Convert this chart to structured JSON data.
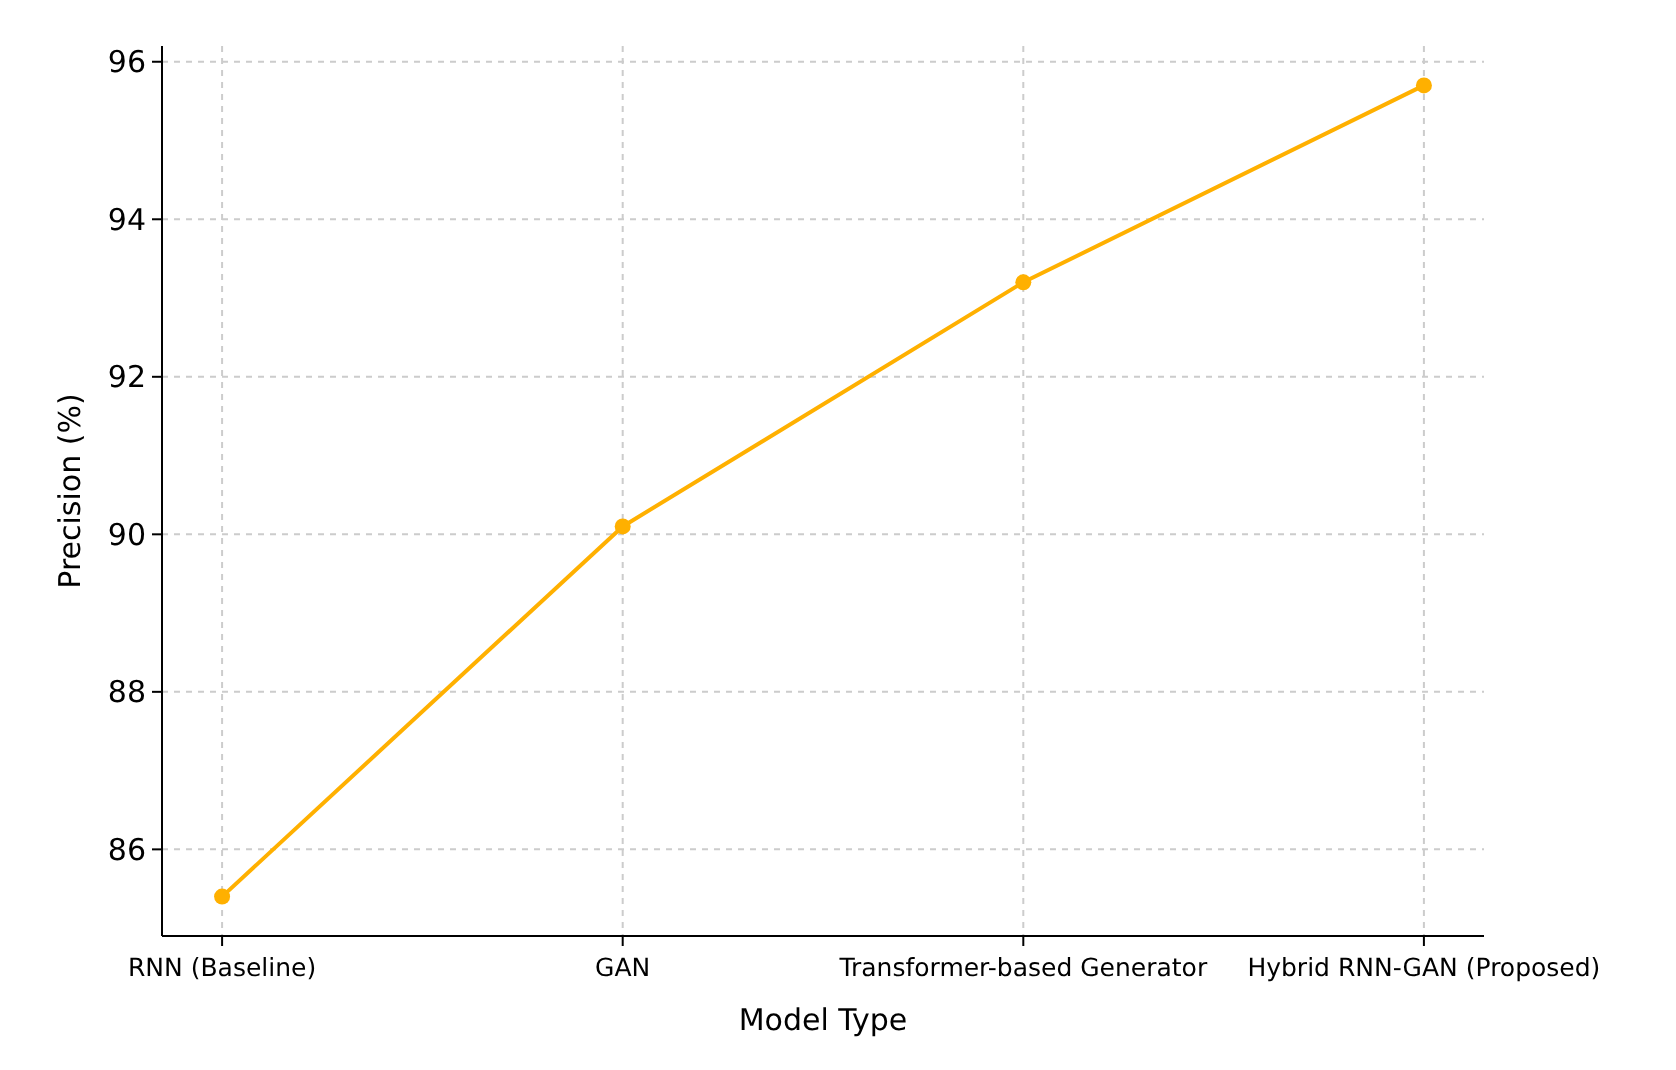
{
  "chart_data": {
    "type": "line",
    "xlabel": "Model Type",
    "ylabel": "Precision (%)",
    "categories": [
      "RNN (Baseline)",
      "GAN",
      "Transformer-based Generator",
      "Hybrid RNN-GAN (Proposed)"
    ],
    "series": [
      {
        "color": "#ffb000",
        "values": [
          85.4,
          90.1,
          93.2,
          95.7
        ]
      }
    ],
    "ylim": [
      84.9,
      96.2
    ],
    "yticks": [
      86,
      88,
      90,
      92,
      94,
      96
    ],
    "grid": true,
    "marker": "circle",
    "line_style": "solid"
  }
}
